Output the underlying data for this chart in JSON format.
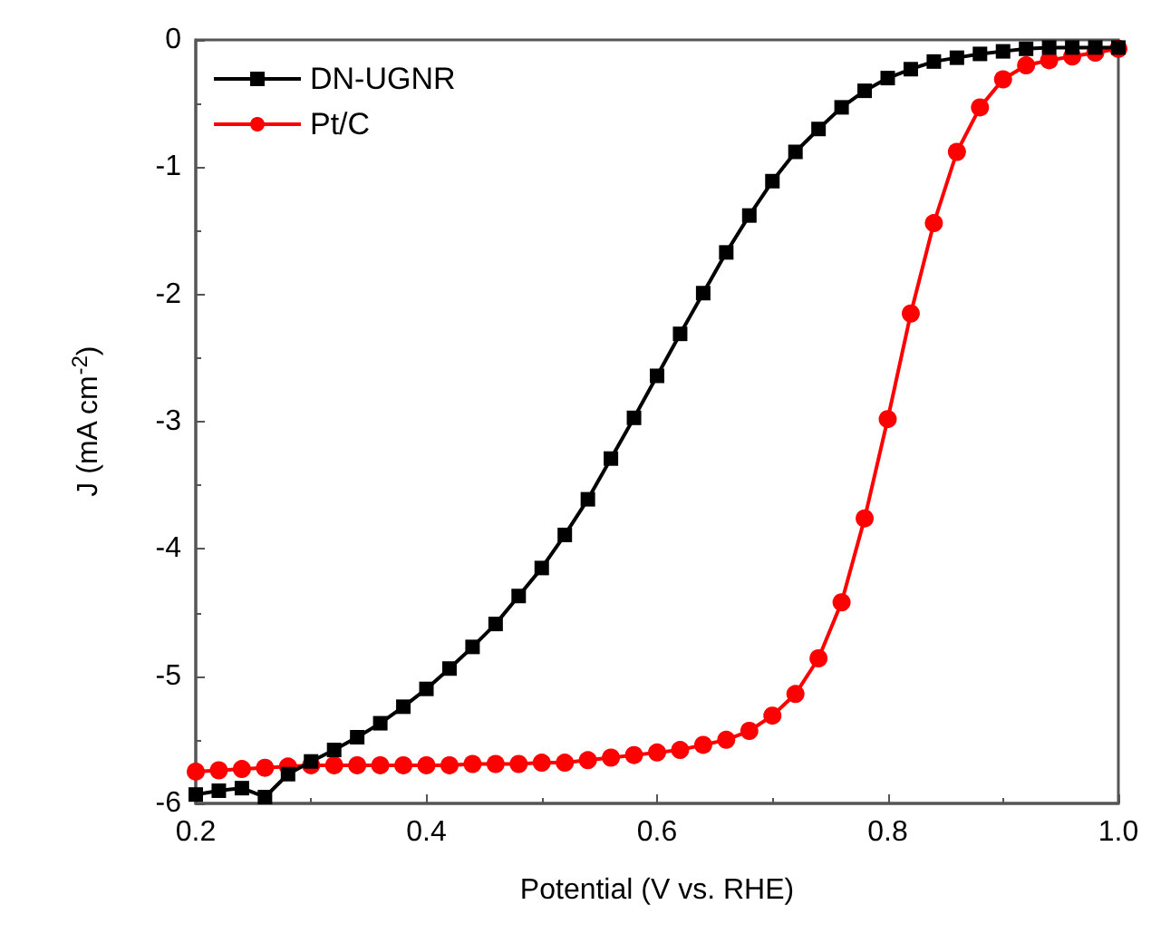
{
  "chart_data": {
    "type": "line",
    "xlabel": "Potential (V vs. RHE)",
    "ylabel": "J (mA cm$^{-2}$)",
    "xlim": [
      0.2,
      1.0
    ],
    "xticks": [
      0.2,
      0.4,
      0.6,
      0.8,
      {
        "value": 1.0,
        "label": "1.0"
      }
    ],
    "ylim": [
      -6,
      0
    ],
    "yticks": [
      -6,
      -5,
      -4,
      -3,
      -2,
      -1,
      0
    ],
    "x": [
      0.2,
      0.22,
      0.24,
      0.26,
      0.28,
      0.3,
      0.32,
      0.34,
      0.36,
      0.38,
      0.4,
      0.42,
      0.44,
      0.46,
      0.48,
      0.5,
      0.52,
      0.54,
      0.56,
      0.58,
      0.6,
      0.62,
      0.64,
      0.66,
      0.68,
      0.7,
      0.72,
      0.74,
      0.76,
      0.78,
      0.8,
      0.82,
      0.84,
      0.86,
      0.88,
      0.9,
      0.92,
      0.94,
      0.96,
      0.98,
      1.0
    ],
    "series": [
      {
        "name": "DN-UGNR",
        "color": "#000000",
        "marker": "square",
        "values": [
          -5.93,
          -5.9,
          -5.88,
          -5.95,
          -5.77,
          -5.67,
          -5.58,
          -5.48,
          -5.37,
          -5.24,
          -5.1,
          -4.94,
          -4.77,
          -4.59,
          -4.37,
          -4.15,
          -3.89,
          -3.61,
          -3.29,
          -2.97,
          -2.64,
          -2.31,
          -1.99,
          -1.67,
          -1.38,
          -1.11,
          -0.88,
          -0.7,
          -0.53,
          -0.4,
          -0.3,
          -0.23,
          -0.17,
          -0.14,
          -0.11,
          -0.09,
          -0.07,
          -0.06,
          -0.06,
          -0.06,
          -0.06
        ]
      },
      {
        "name": "Pt/C",
        "color": "#ff0000",
        "marker": "circle",
        "values": [
          -5.75,
          -5.74,
          -5.73,
          -5.72,
          -5.71,
          -5.7,
          -5.7,
          -5.7,
          -5.7,
          -5.7,
          -5.7,
          -5.7,
          -5.69,
          -5.69,
          -5.69,
          -5.68,
          -5.68,
          -5.66,
          -5.64,
          -5.62,
          -5.6,
          -5.58,
          -5.54,
          -5.5,
          -5.43,
          -5.31,
          -5.14,
          -4.86,
          -4.42,
          -3.76,
          -2.98,
          -2.15,
          -1.44,
          -0.88,
          -0.53,
          -0.31,
          -0.2,
          -0.16,
          -0.13,
          -0.1,
          -0.07
        ]
      }
    ],
    "legend": "top left",
    "grid": false,
    "line_style": "solid"
  }
}
